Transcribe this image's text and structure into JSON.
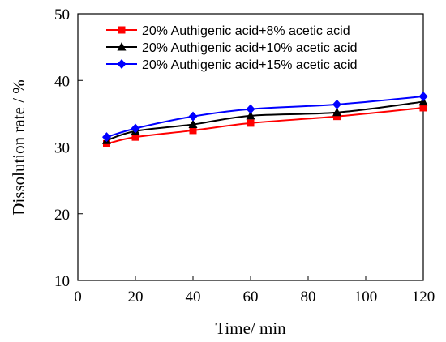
{
  "chart_data": {
    "type": "line",
    "xlabel": "Time/ min",
    "ylabel": "Dissolution rate / %",
    "xlim": [
      0,
      120
    ],
    "ylim": [
      10,
      50
    ],
    "xticks": [
      0,
      20,
      40,
      60,
      80,
      100,
      120
    ],
    "yticks": [
      10,
      20,
      30,
      40,
      50
    ],
    "grid": false,
    "legend_position": "top-right",
    "x": [
      10,
      20,
      40,
      60,
      90,
      120
    ],
    "series": [
      {
        "name": "20% Authigenic acid+8% acetic acid",
        "color": "#ff0000",
        "marker": "square",
        "values": [
          30.5,
          31.5,
          32.5,
          33.6,
          34.6,
          35.9
        ]
      },
      {
        "name": "20% Authigenic acid+10% acetic acid",
        "color": "#000000",
        "marker": "triangle",
        "values": [
          31.0,
          32.4,
          33.4,
          34.7,
          35.2,
          36.8
        ]
      },
      {
        "name": "20% Authigenic acid+15% acetic acid",
        "color": "#0000ff",
        "marker": "diamond",
        "values": [
          31.5,
          32.8,
          34.6,
          35.7,
          36.4,
          37.6
        ]
      }
    ]
  }
}
